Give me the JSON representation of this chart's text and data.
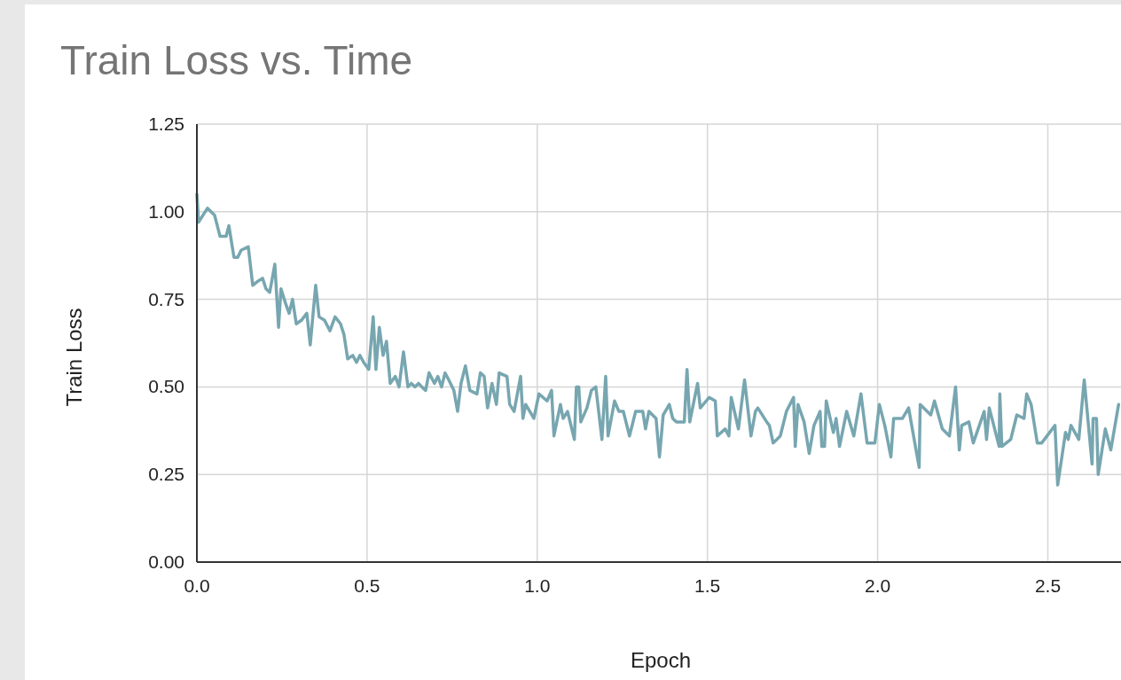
{
  "chart_data": {
    "type": "line",
    "title": "Train Loss vs. Time",
    "xlabel": "Epoch",
    "ylabel": "Train Loss",
    "xlim": [
      0,
      2.715
    ],
    "xticks": [
      {
        "value": 0,
        "label": "0.0"
      },
      0.5,
      {
        "value": 1,
        "label": "1.0"
      },
      1.5,
      {
        "value": 2,
        "label": "2.0"
      },
      2.5
    ],
    "ylim": [
      0,
      1.25
    ],
    "yticks": [
      {
        "value": 0,
        "label": "0.00"
      },
      0.25,
      {
        "value": 0.5,
        "label": "0.50"
      },
      0.75,
      {
        "value": 1,
        "label": "1.00"
      },
      1.25
    ],
    "grid": true,
    "marker": "none",
    "line_style": "solid",
    "series": [
      {
        "color": "#77a6b0",
        "x": [
          0.0,
          0.005,
          0.031,
          0.052,
          0.068,
          0.086,
          0.094,
          0.109,
          0.12,
          0.13,
          0.151,
          0.164,
          0.177,
          0.193,
          0.203,
          0.214,
          0.229,
          0.24,
          0.247,
          0.26,
          0.271,
          0.281,
          0.292,
          0.307,
          0.323,
          0.333,
          0.349,
          0.359,
          0.375,
          0.391,
          0.406,
          0.422,
          0.432,
          0.443,
          0.458,
          0.469,
          0.479,
          0.49,
          0.505,
          0.518,
          0.526,
          0.536,
          0.547,
          0.557,
          0.568,
          0.583,
          0.594,
          0.607,
          0.62,
          0.63,
          0.641,
          0.651,
          0.661,
          0.672,
          0.682,
          0.698,
          0.708,
          0.719,
          0.729,
          0.74,
          0.755,
          0.766,
          0.776,
          0.789,
          0.802,
          0.823,
          0.833,
          0.844,
          0.854,
          0.867,
          0.88,
          0.888,
          0.911,
          0.919,
          0.932,
          0.951,
          0.958,
          0.966,
          0.99,
          1.005,
          1.029,
          1.042,
          1.049,
          1.068,
          1.076,
          1.089,
          1.109,
          1.115,
          1.122,
          1.128,
          1.146,
          1.159,
          1.172,
          1.19,
          1.201,
          1.208,
          1.227,
          1.24,
          1.253,
          1.271,
          1.289,
          1.31,
          1.318,
          1.328,
          1.349,
          1.359,
          1.37,
          1.388,
          1.398,
          1.409,
          1.432,
          1.44,
          1.448,
          1.471,
          1.479,
          1.505,
          1.523,
          1.529,
          1.552,
          1.563,
          1.57,
          1.591,
          1.609,
          1.628,
          1.641,
          1.648,
          1.674,
          1.682,
          1.693,
          1.714,
          1.732,
          1.753,
          1.758,
          1.766,
          1.784,
          1.799,
          1.813,
          1.831,
          1.836,
          1.844,
          1.849,
          1.87,
          1.878,
          1.888,
          1.909,
          1.93,
          1.951,
          1.969,
          1.992,
          2.005,
          2.021,
          2.039,
          2.047,
          2.073,
          2.091,
          2.122,
          2.125,
          2.156,
          2.167,
          2.19,
          2.211,
          2.229,
          2.24,
          2.247,
          2.268,
          2.281,
          2.313,
          2.32,
          2.328,
          2.357,
          2.359,
          2.365,
          2.391,
          2.409,
          2.43,
          2.438,
          2.451,
          2.469,
          2.482,
          2.521,
          2.529,
          2.552,
          2.56,
          2.568,
          2.591,
          2.607,
          2.63,
          2.633,
          2.643,
          2.648,
          2.669,
          2.685,
          2.708
        ],
        "values": [
          1.05,
          0.97,
          1.01,
          0.99,
          0.93,
          0.93,
          0.96,
          0.87,
          0.87,
          0.89,
          0.9,
          0.79,
          0.8,
          0.81,
          0.78,
          0.77,
          0.85,
          0.67,
          0.78,
          0.74,
          0.71,
          0.75,
          0.68,
          0.69,
          0.71,
          0.62,
          0.79,
          0.7,
          0.69,
          0.66,
          0.7,
          0.68,
          0.65,
          0.58,
          0.59,
          0.57,
          0.59,
          0.57,
          0.55,
          0.7,
          0.55,
          0.67,
          0.59,
          0.63,
          0.51,
          0.53,
          0.5,
          0.6,
          0.5,
          0.51,
          0.5,
          0.51,
          0.5,
          0.49,
          0.54,
          0.51,
          0.53,
          0.5,
          0.54,
          0.52,
          0.49,
          0.43,
          0.51,
          0.56,
          0.49,
          0.48,
          0.54,
          0.53,
          0.44,
          0.51,
          0.45,
          0.54,
          0.53,
          0.45,
          0.43,
          0.53,
          0.41,
          0.45,
          0.41,
          0.48,
          0.46,
          0.49,
          0.36,
          0.45,
          0.41,
          0.43,
          0.35,
          0.5,
          0.5,
          0.4,
          0.44,
          0.49,
          0.5,
          0.35,
          0.53,
          0.36,
          0.46,
          0.43,
          0.43,
          0.36,
          0.43,
          0.43,
          0.38,
          0.43,
          0.41,
          0.3,
          0.42,
          0.45,
          0.41,
          0.4,
          0.4,
          0.55,
          0.4,
          0.51,
          0.44,
          0.47,
          0.46,
          0.36,
          0.38,
          0.36,
          0.47,
          0.38,
          0.52,
          0.36,
          0.43,
          0.44,
          0.4,
          0.39,
          0.34,
          0.36,
          0.43,
          0.47,
          0.33,
          0.45,
          0.4,
          0.31,
          0.39,
          0.43,
          0.33,
          0.33,
          0.46,
          0.37,
          0.41,
          0.33,
          0.43,
          0.36,
          0.48,
          0.34,
          0.34,
          0.45,
          0.39,
          0.3,
          0.41,
          0.41,
          0.44,
          0.27,
          0.45,
          0.42,
          0.46,
          0.38,
          0.36,
          0.5,
          0.32,
          0.39,
          0.4,
          0.34,
          0.43,
          0.35,
          0.44,
          0.33,
          0.48,
          0.33,
          0.35,
          0.42,
          0.41,
          0.48,
          0.45,
          0.34,
          0.34,
          0.39,
          0.22,
          0.37,
          0.35,
          0.39,
          0.35,
          0.52,
          0.28,
          0.41,
          0.41,
          0.25,
          0.38,
          0.32,
          0.45
        ]
      }
    ]
  }
}
